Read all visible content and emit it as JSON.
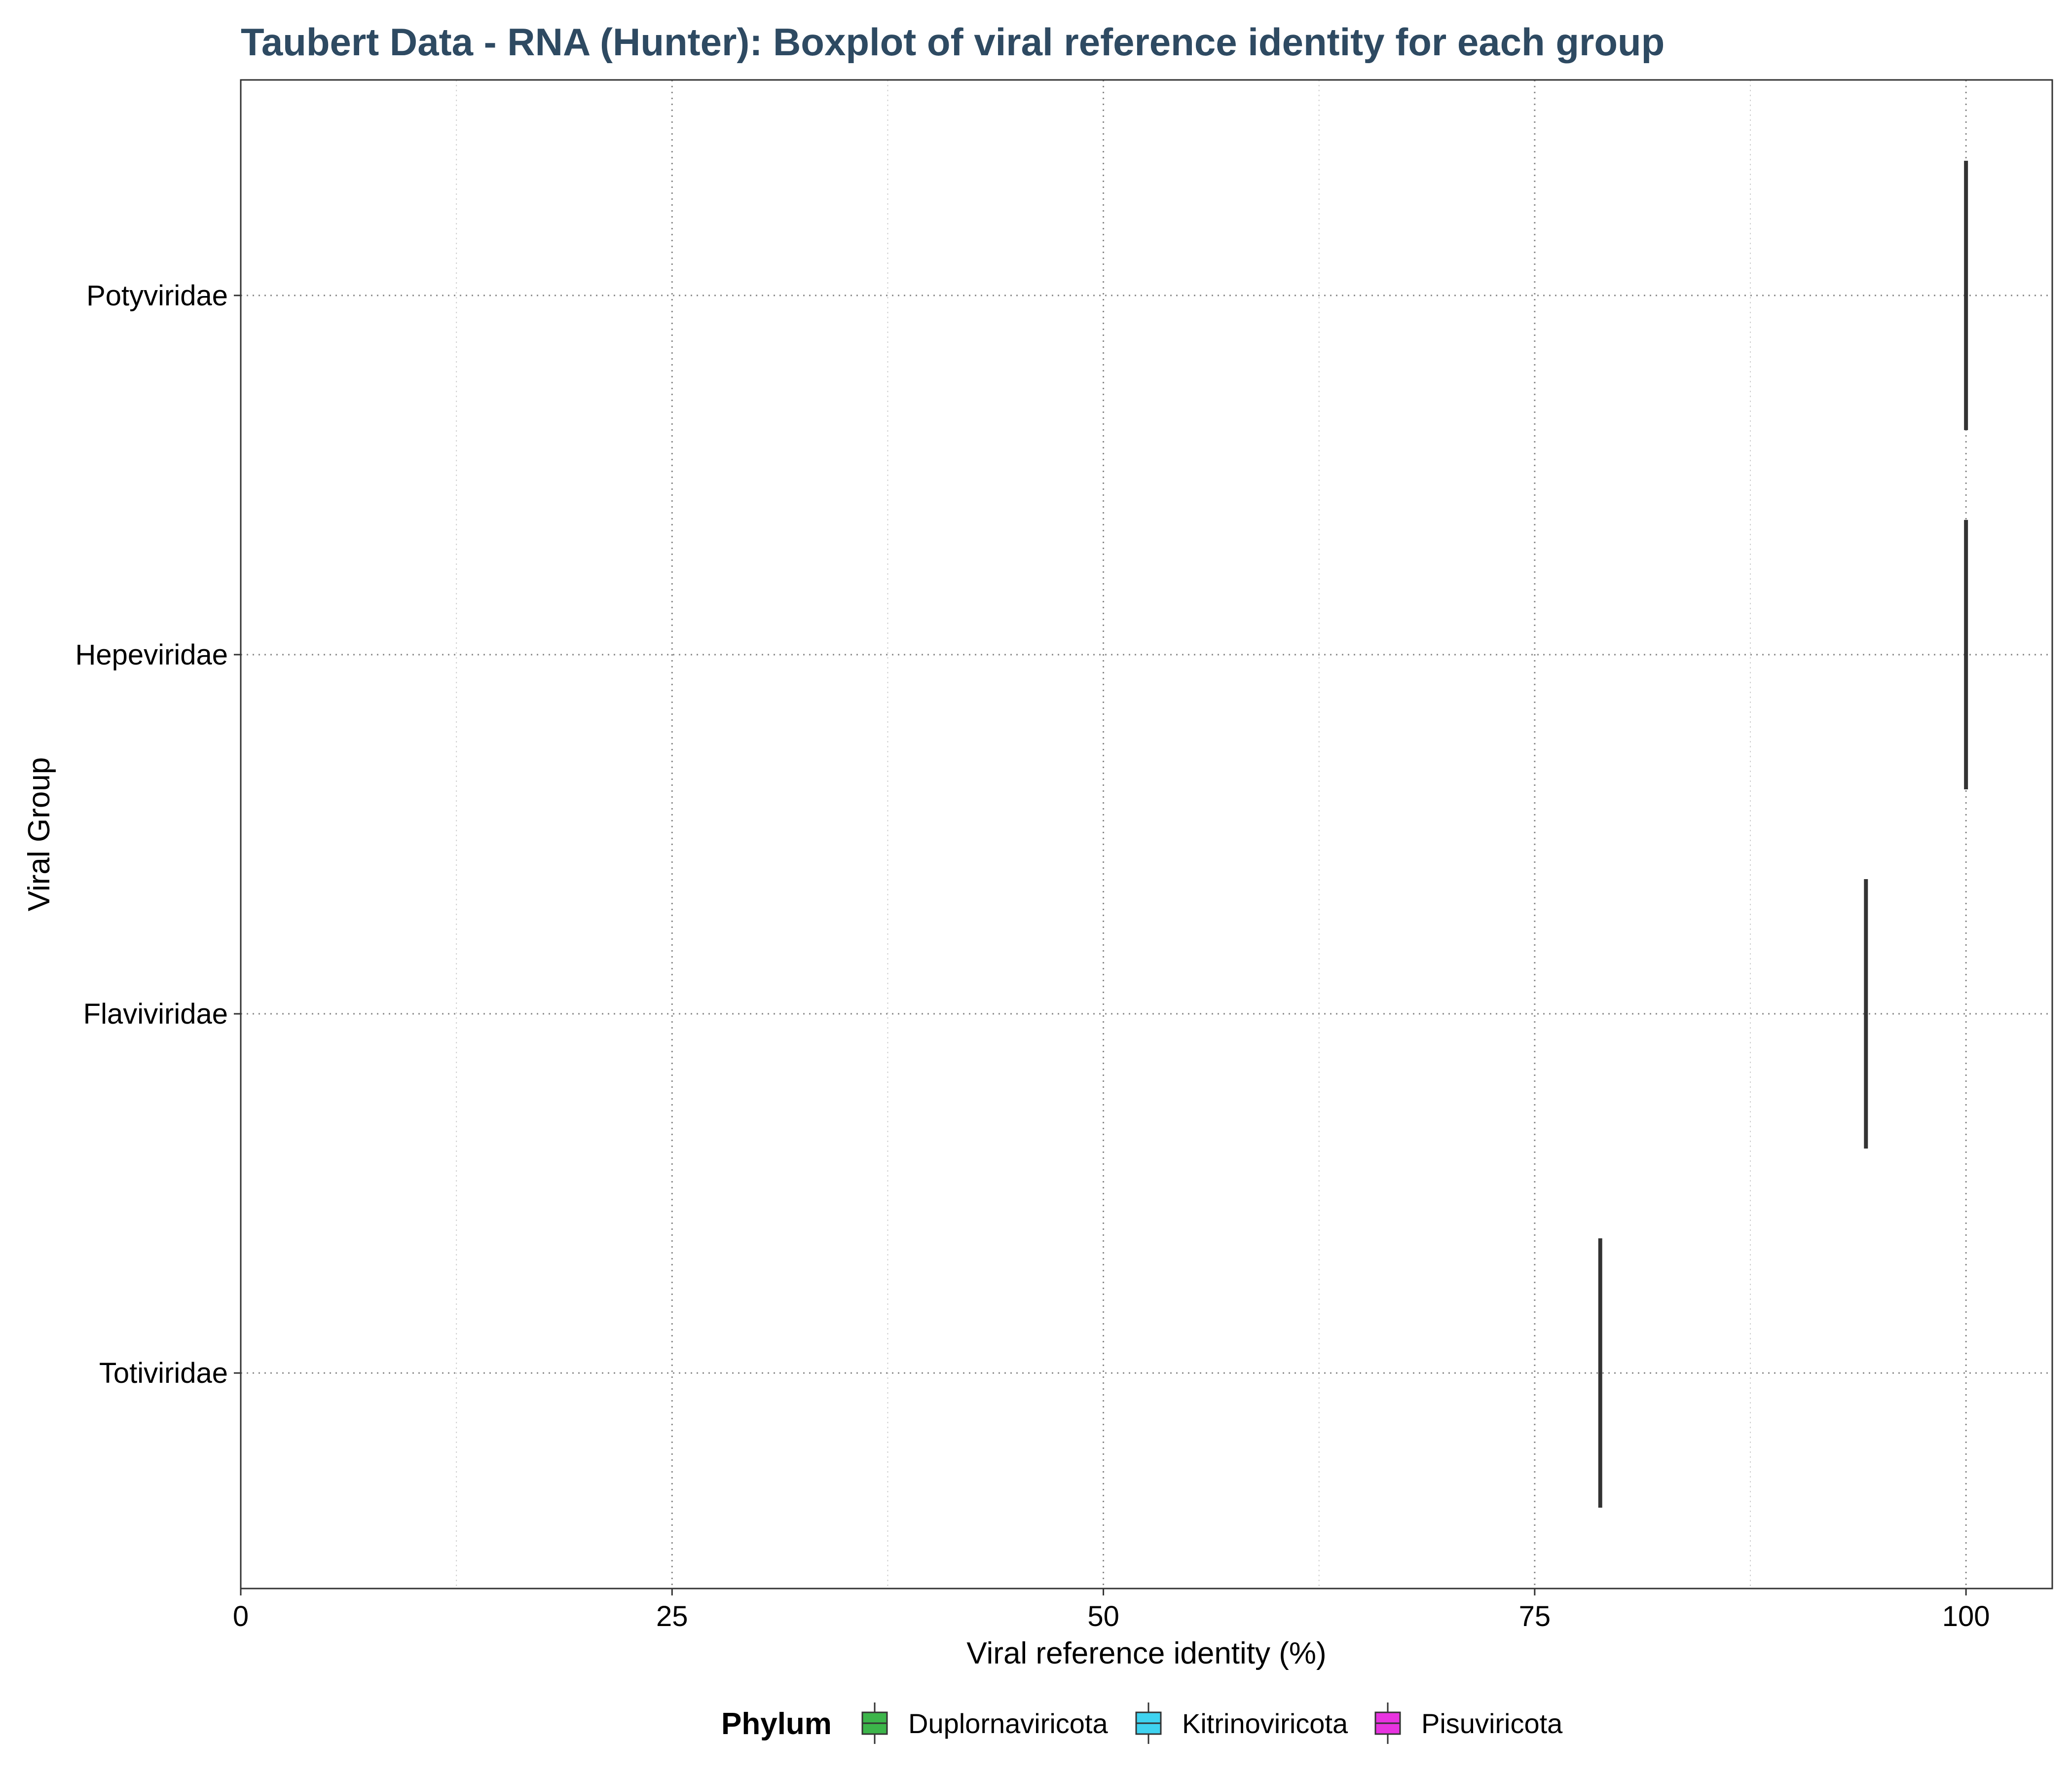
{
  "chart_data": {
    "type": "boxplot",
    "title": "Taubert Data - RNA (Hunter): Boxplot of viral reference identity for each group",
    "xlabel": "Viral reference identity (%)",
    "ylabel": "Viral Group",
    "xlim": [
      0,
      105
    ],
    "x_ticks": [
      0,
      25,
      50,
      75,
      100
    ],
    "categories": [
      "Potyviridae",
      "Hepeviridae",
      "Flaviviridae",
      "Totiviridae"
    ],
    "grid": true,
    "legend": {
      "title": "Phylum",
      "placement": "bottom",
      "entries": [
        {
          "label": "Duplornaviricota",
          "color": "#3cb54a"
        },
        {
          "label": "Kitrinoviricota",
          "color": "#3fd3f0"
        },
        {
          "label": "Pisuviricota",
          "color": "#e833e0"
        }
      ]
    },
    "boxes": [
      {
        "category": "Potyviridae",
        "phylum": "Pisuviricota",
        "value": 100
      },
      {
        "category": "Hepeviridae",
        "phylum": "Kitrinoviricota",
        "value": 100
      },
      {
        "category": "Flaviviridae",
        "phylum": "Kitrinoviricota",
        "value": 94.2
      },
      {
        "category": "Totiviridae",
        "phylum": "Duplornaviricota",
        "value": 78.8
      }
    ],
    "colors": {
      "title": "#2e4a62",
      "box_line": "#333333",
      "major_grid": "#8a8a8a",
      "minor_grid": "#d0d0d0",
      "panel_border": "#333333"
    }
  }
}
